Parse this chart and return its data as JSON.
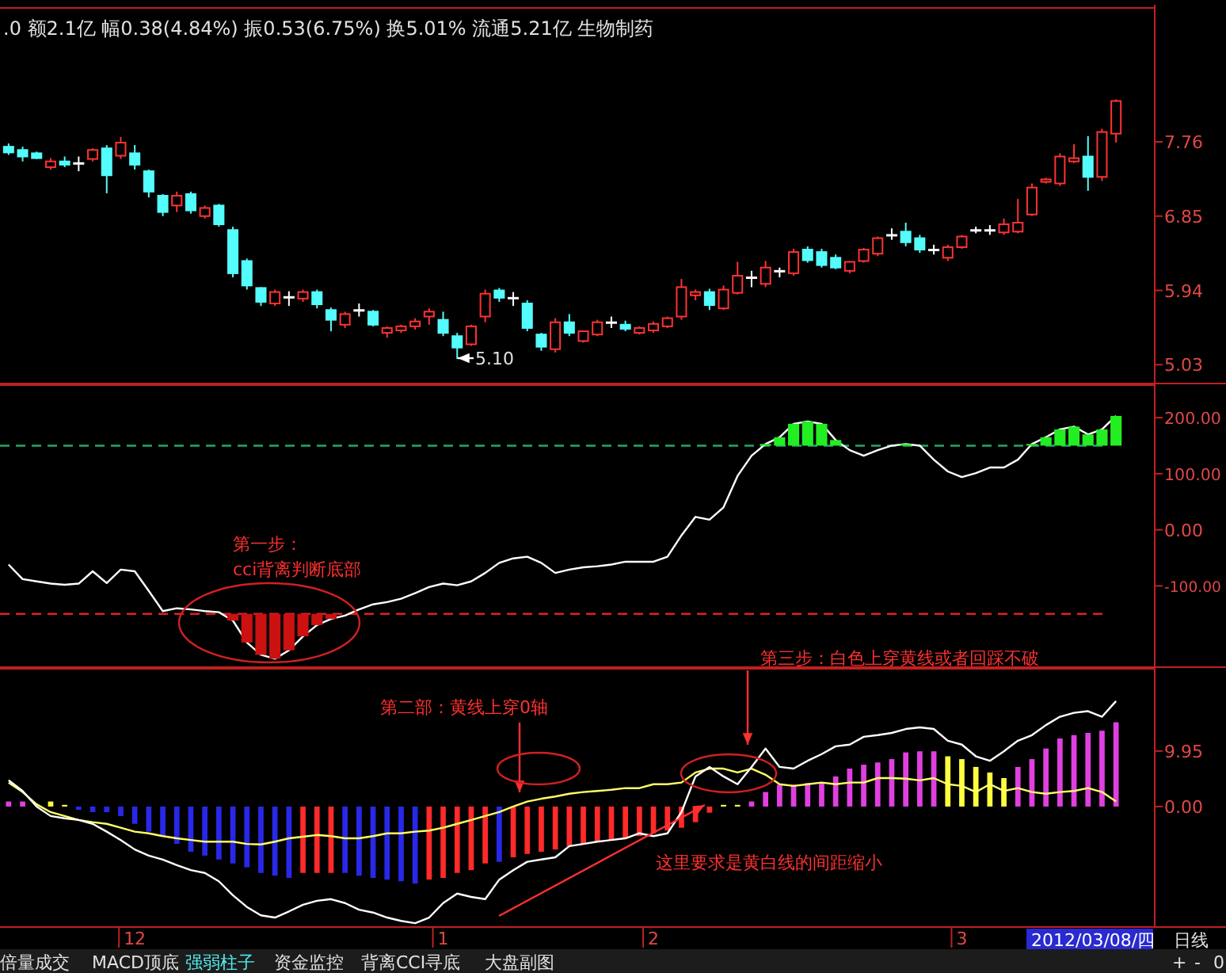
{
  "chart_data": [
    {
      "type": "candlestick",
      "title": ".0 额2.1亿 幅0.38(4.84%) 振0.53(6.75%) 换5.01% 流通5.21亿 生物制药",
      "categories": [
        null,
        null,
        null,
        null,
        null,
        null,
        null,
        null,
        null,
        null,
        null,
        null,
        null,
        null,
        null,
        null,
        null,
        null,
        null,
        null,
        null,
        null,
        null,
        null,
        null,
        null,
        null,
        null,
        null,
        null,
        null,
        null,
        null,
        null,
        null,
        null,
        null,
        null,
        null,
        null,
        null,
        null,
        null,
        null,
        null,
        null,
        null,
        null,
        null,
        null,
        null,
        null,
        null,
        null,
        null,
        null,
        null,
        null,
        null,
        null,
        null,
        null,
        null,
        null,
        null,
        null,
        null,
        null,
        null,
        null,
        null,
        null,
        null,
        null,
        null,
        null,
        null,
        null,
        null,
        null
      ],
      "ohlc": [
        [
          7.7,
          7.74,
          7.6,
          7.63
        ],
        [
          7.66,
          7.7,
          7.52,
          7.58
        ],
        [
          7.62,
          7.64,
          7.55,
          7.56
        ],
        [
          7.45,
          7.56,
          7.42,
          7.52
        ],
        [
          7.52,
          7.58,
          7.45,
          7.48
        ],
        [
          7.5,
          7.58,
          7.4,
          7.5
        ],
        [
          7.55,
          7.68,
          7.52,
          7.66
        ],
        [
          7.68,
          7.72,
          7.13,
          7.35
        ],
        [
          7.59,
          7.82,
          7.55,
          7.75
        ],
        [
          7.62,
          7.72,
          7.42,
          7.48
        ],
        [
          7.4,
          7.42,
          7.08,
          7.15
        ],
        [
          7.1,
          7.12,
          6.85,
          6.9
        ],
        [
          6.98,
          7.15,
          6.9,
          7.1
        ],
        [
          7.12,
          7.15,
          6.88,
          6.92
        ],
        [
          6.85,
          6.98,
          6.82,
          6.95
        ],
        [
          6.98,
          7.0,
          6.72,
          6.75
        ],
        [
          6.68,
          6.72,
          6.1,
          6.15
        ],
        [
          6.3,
          6.33,
          5.95,
          6.0
        ],
        [
          5.97,
          5.98,
          5.75,
          5.8
        ],
        [
          5.78,
          5.95,
          5.75,
          5.92
        ],
        [
          5.86,
          5.93,
          5.75,
          5.86
        ],
        [
          5.84,
          5.95,
          5.8,
          5.92
        ],
        [
          5.92,
          5.95,
          5.72,
          5.77
        ],
        [
          5.7,
          5.73,
          5.44,
          5.58
        ],
        [
          5.52,
          5.68,
          5.48,
          5.65
        ],
        [
          5.7,
          5.78,
          5.62,
          5.7
        ],
        [
          5.68,
          5.7,
          5.5,
          5.52
        ],
        [
          5.42,
          5.5,
          5.36,
          5.48
        ],
        [
          5.45,
          5.52,
          5.42,
          5.5
        ],
        [
          5.5,
          5.6,
          5.46,
          5.56
        ],
        [
          5.62,
          5.72,
          5.52,
          5.68
        ],
        [
          5.58,
          5.68,
          5.38,
          5.42
        ],
        [
          5.38,
          5.42,
          5.1,
          5.24
        ],
        [
          5.28,
          5.52,
          5.26,
          5.5
        ],
        [
          5.62,
          5.95,
          5.55,
          5.9
        ],
        [
          5.94,
          5.97,
          5.8,
          5.85
        ],
        [
          5.85,
          5.92,
          5.75,
          5.85
        ],
        [
          5.78,
          5.82,
          5.44,
          5.48
        ],
        [
          5.4,
          5.42,
          5.2,
          5.25
        ],
        [
          5.22,
          5.6,
          5.18,
          5.55
        ],
        [
          5.55,
          5.65,
          5.38,
          5.42
        ],
        [
          5.32,
          5.45,
          5.3,
          5.44
        ],
        [
          5.4,
          5.58,
          5.38,
          5.55
        ],
        [
          5.55,
          5.62,
          5.48,
          5.55
        ],
        [
          5.52,
          5.57,
          5.44,
          5.47
        ],
        [
          5.42,
          5.5,
          5.4,
          5.48
        ],
        [
          5.45,
          5.56,
          5.42,
          5.53
        ],
        [
          5.5,
          5.62,
          5.48,
          5.6
        ],
        [
          5.62,
          6.08,
          5.58,
          5.98
        ],
        [
          5.88,
          5.95,
          5.82,
          5.92
        ],
        [
          5.92,
          5.96,
          5.7,
          5.76
        ],
        [
          5.72,
          6.0,
          5.7,
          5.95
        ],
        [
          5.91,
          6.29,
          5.89,
          6.12
        ],
        [
          6.1,
          6.18,
          5.98,
          6.1
        ],
        [
          6.02,
          6.3,
          5.98,
          6.22
        ],
        [
          6.18,
          6.22,
          6.1,
          6.18
        ],
        [
          6.15,
          6.45,
          6.12,
          6.41
        ],
        [
          6.44,
          6.48,
          6.28,
          6.31
        ],
        [
          6.41,
          6.45,
          6.22,
          6.25
        ],
        [
          6.34,
          6.38,
          6.2,
          6.22
        ],
        [
          6.18,
          6.3,
          6.15,
          6.29
        ],
        [
          6.3,
          6.46,
          6.28,
          6.44
        ],
        [
          6.39,
          6.6,
          6.36,
          6.58
        ],
        [
          6.62,
          6.7,
          6.56,
          6.62
        ],
        [
          6.66,
          6.77,
          6.48,
          6.53
        ],
        [
          6.58,
          6.62,
          6.4,
          6.44
        ],
        [
          6.44,
          6.5,
          6.38,
          6.44
        ],
        [
          6.34,
          6.5,
          6.3,
          6.47
        ],
        [
          6.47,
          6.62,
          6.45,
          6.6
        ],
        [
          6.68,
          6.72,
          6.64,
          6.68
        ],
        [
          6.68,
          6.74,
          6.62,
          6.68
        ],
        [
          6.65,
          6.82,
          6.62,
          6.75
        ],
        [
          6.66,
          7.06,
          6.64,
          6.77
        ],
        [
          6.87,
          7.25,
          6.85,
          7.2
        ],
        [
          7.27,
          7.32,
          7.25,
          7.3
        ],
        [
          7.25,
          7.62,
          7.22,
          7.58
        ],
        [
          7.52,
          7.73,
          7.5,
          7.56
        ],
        [
          7.58,
          7.83,
          7.16,
          7.33
        ],
        [
          7.33,
          7.92,
          7.28,
          7.88
        ],
        [
          7.86,
          8.28,
          7.75,
          8.26
        ]
      ],
      "colors": [
        "#54fcfc",
        "#54fcfc",
        "#54fcfc",
        "#ff3232",
        "#54fcfc",
        "#ffffff",
        "#ff3232",
        "#54fcfc",
        "#ff3232",
        "#54fcfc",
        "#54fcfc",
        "#54fcfc",
        "#ff3232",
        "#54fcfc",
        "#ff3232",
        "#54fcfc",
        "#54fcfc",
        "#54fcfc",
        "#54fcfc",
        "#ff3232",
        "#ffffff",
        "#ff3232",
        "#54fcfc",
        "#54fcfc",
        "#ff3232",
        "#ffffff",
        "#54fcfc",
        "#ff3232",
        "#ff3232",
        "#ff3232",
        "#ff3232",
        "#54fcfc",
        "#54fcfc",
        "#ff3232",
        "#ff3232",
        "#54fcfc",
        "#ffffff",
        "#54fcfc",
        "#54fcfc",
        "#ff3232",
        "#54fcfc",
        "#ff3232",
        "#ff3232",
        "#ffffff",
        "#54fcfc",
        "#ff3232",
        "#ff3232",
        "#ff3232",
        "#ff3232",
        "#ff3232",
        "#54fcfc",
        "#ff3232",
        "#ff3232",
        "#ffffff",
        "#ff3232",
        "#ffffff",
        "#ff3232",
        "#54fcfc",
        "#54fcfc",
        "#54fcfc",
        "#ff3232",
        "#ff3232",
        "#ff3232",
        "#ffffff",
        "#54fcfc",
        "#54fcfc",
        "#ffffff",
        "#ff3232",
        "#ff3232",
        "#ffffff",
        "#ffffff",
        "#ff3232",
        "#ff3232",
        "#ff3232",
        "#ff3232",
        "#ff3232",
        "#ff3232",
        "#54fcfc",
        "#ff3232",
        "#ff3232"
      ],
      "ylim": [
        4.8,
        9.4
      ],
      "yticks": [
        5.03,
        5.94,
        6.85,
        7.76
      ],
      "tick_labels": "y",
      "annotations": [
        "5.10"
      ]
    },
    {
      "type": "line",
      "categories": [
        null,
        null,
        null,
        null,
        null,
        null,
        null,
        null,
        null,
        null,
        null,
        null,
        null,
        null,
        null,
        null,
        null,
        null,
        null,
        null,
        null,
        null,
        null,
        null,
        null,
        null,
        null,
        null,
        null,
        null,
        null,
        null,
        null,
        null,
        null,
        null,
        null,
        null,
        null,
        null,
        null,
        null,
        null,
        null,
        null,
        null,
        null,
        null,
        null,
        null,
        null,
        null,
        null,
        null,
        null,
        null,
        null,
        null,
        null,
        null,
        null,
        null,
        null,
        null,
        null,
        null,
        null,
        null,
        null,
        null,
        null,
        null,
        null,
        null,
        null,
        null,
        null,
        null,
        null,
        null
      ],
      "series": [
        {
          "type": "line",
          "color": "#ffffff",
          "values": [
            -62,
            -88,
            -92,
            -96,
            -98,
            -96,
            -74,
            -95,
            -71,
            -74,
            -109,
            -145,
            -140,
            -142,
            -145,
            -147,
            -162,
            -201,
            -223,
            -230,
            -215,
            -190,
            -170,
            -159,
            -153,
            -142,
            -133,
            -129,
            -123,
            -113,
            -102,
            -96,
            -99,
            -92,
            -77,
            -59,
            -51,
            -48,
            -59,
            -77,
            -71,
            -67,
            -65,
            -62,
            -57,
            -57,
            -57,
            -48,
            -10,
            23,
            18,
            40,
            96,
            132,
            153,
            165,
            189,
            193,
            189,
            160,
            142,
            132,
            142,
            150,
            153,
            150,
            125,
            104,
            94,
            101,
            111,
            111,
            125,
            153,
            165,
            179,
            184,
            170,
            179,
            203
          ]
        },
        {
          "type": "bar",
          "color": "#22ee22",
          "values": [
            null,
            null,
            null,
            null,
            null,
            null,
            null,
            null,
            null,
            null,
            null,
            null,
            null,
            null,
            null,
            null,
            null,
            null,
            null,
            null,
            null,
            null,
            null,
            null,
            null,
            null,
            null,
            null,
            null,
            null,
            null,
            null,
            null,
            null,
            null,
            null,
            null,
            null,
            null,
            null,
            null,
            null,
            null,
            null,
            null,
            null,
            null,
            null,
            null,
            null,
            null,
            null,
            null,
            null,
            3,
            15,
            39,
            43,
            39,
            10,
            null,
            null,
            null,
            null,
            3,
            null,
            null,
            null,
            null,
            null,
            null,
            null,
            null,
            3,
            15,
            29,
            34,
            20,
            29,
            53
          ],
          "base": [
            null,
            null,
            null,
            null,
            null,
            null,
            null,
            null,
            null,
            null,
            null,
            null,
            null,
            null,
            null,
            null,
            null,
            null,
            null,
            null,
            null,
            null,
            null,
            null,
            null,
            null,
            null,
            null,
            null,
            null,
            null,
            null,
            null,
            null,
            null,
            null,
            null,
            null,
            null,
            null,
            null,
            null,
            null,
            null,
            null,
            null,
            null,
            null,
            null,
            null,
            null,
            null,
            null,
            null,
            150,
            150,
            150,
            150,
            150,
            150,
            null,
            null,
            null,
            null,
            150,
            null,
            null,
            null,
            null,
            null,
            null,
            null,
            null,
            150,
            150,
            150,
            150,
            150,
            150,
            150
          ]
        },
        {
          "type": "bar",
          "color": "#cc1111",
          "values": [
            null,
            null,
            null,
            null,
            null,
            null,
            null,
            null,
            null,
            null,
            null,
            null,
            null,
            null,
            null,
            null,
            -12,
            -51,
            -73,
            -80,
            -65,
            -40,
            -20,
            -9,
            null,
            null,
            null,
            null,
            null,
            null,
            null,
            null,
            null,
            null,
            null,
            null,
            null,
            null,
            null,
            null,
            null,
            null,
            null,
            null,
            null,
            null,
            null,
            null,
            null,
            null,
            null,
            null,
            null,
            null,
            null,
            null,
            null,
            null,
            null,
            null,
            null,
            null,
            null,
            null,
            null,
            null,
            null,
            null,
            null,
            null,
            null,
            null,
            null,
            null,
            null,
            null,
            null,
            null,
            null,
            null
          ],
          "base": [
            null,
            null,
            null,
            null,
            null,
            null,
            null,
            null,
            null,
            null,
            null,
            null,
            null,
            null,
            null,
            null,
            -150,
            -150,
            -150,
            -150,
            -150,
            -150,
            -150,
            -150,
            null,
            null,
            null,
            null,
            null,
            null,
            null,
            null,
            null,
            null,
            null,
            null,
            null,
            null,
            null,
            null,
            null,
            null,
            null,
            null,
            null,
            null,
            null,
            null,
            null,
            null,
            null,
            null,
            null,
            null,
            null,
            null,
            null,
            null,
            null,
            null,
            null,
            null,
            null,
            null,
            null,
            null,
            null,
            null,
            null,
            null,
            null,
            null,
            null,
            null,
            null,
            null,
            null,
            null,
            null,
            null
          ]
        }
      ],
      "ylim": [
        -245,
        258
      ],
      "yticks": [
        {
          "value": 200,
          "label": "200.00"
        },
        {
          "value": 100,
          "label": "100.00"
        },
        {
          "value": 0,
          "label": "0.00"
        },
        {
          "value": -100,
          "label": "-100.00"
        }
      ],
      "tick_labels": "y",
      "ref_lines": [
        {
          "axis": "y",
          "value": 150,
          "color": "#22aa66",
          "line_style": "dashed"
        },
        {
          "axis": "y",
          "value": -150,
          "color": "#dd2222",
          "line_style": "dashed"
        }
      ],
      "annotations": [
        "第一步：",
        "cci背离判断底部"
      ]
    },
    {
      "type": "bar",
      "categories": [
        null,
        null,
        null,
        null,
        null,
        null,
        null,
        null,
        null,
        "12",
        null,
        null,
        null,
        null,
        null,
        null,
        null,
        null,
        null,
        null,
        null,
        null,
        null,
        null,
        null,
        null,
        null,
        null,
        null,
        null,
        null,
        "1",
        null,
        null,
        null,
        null,
        null,
        null,
        null,
        null,
        null,
        null,
        null,
        null,
        null,
        null,
        "2",
        null,
        null,
        null,
        null,
        null,
        null,
        null,
        null,
        null,
        null,
        null,
        null,
        null,
        null,
        null,
        null,
        null,
        null,
        null,
        null,
        null,
        "3",
        null,
        null,
        null,
        null,
        null,
        null,
        null,
        null,
        null,
        null,
        null
      ],
      "series": [
        {
          "type": "bar",
          "values": [
            0.9,
            0.9,
            null,
            0.9,
            0.3,
            -0.6,
            -1.0,
            -1.0,
            -1.7,
            -3.1,
            -4.5,
            -5.3,
            -6.7,
            -8.1,
            -8.8,
            -9.5,
            -10.2,
            -10.9,
            -11.9,
            -12.4,
            -12.8,
            -11.9,
            -11.9,
            -11.9,
            -11.9,
            -12.4,
            -12.8,
            -13.1,
            -13.4,
            -13.8,
            -13.1,
            -12.8,
            -11.9,
            -11.4,
            -10.2,
            -9.9,
            -9.1,
            -8.5,
            -8.1,
            -7.7,
            -7.1,
            -6.7,
            -6.3,
            -6.0,
            -5.7,
            -5.3,
            -4.8,
            -4.3,
            -3.8,
            -2.8,
            -1.1,
            0.3,
            0.3,
            0.9,
            2.6,
            3.9,
            3.9,
            4.2,
            4.2,
            5.4,
            6.8,
            7.5,
            7.9,
            8.5,
            9.7,
            9.9,
            9.9,
            9.0,
            8.5,
            7.1,
            6.1,
            5.1,
            7.1,
            8.5,
            10.4,
            12.2,
            12.8,
            13.2,
            13.6,
            15.1
          ],
          "colors": [
            "#e040e0",
            "#e040e0",
            null,
            "#ffff40",
            "#ffff40",
            "#2828e8",
            "#2828e8",
            "#2828e8",
            "#2828e8",
            "#2828e8",
            "#2828e8",
            "#2828e8",
            "#2828e8",
            "#2828e8",
            "#2828e8",
            "#2828e8",
            "#2828e8",
            "#2828e8",
            "#2828e8",
            "#2828e8",
            "#2828e8",
            "#ff2a2a",
            "#ff2a2a",
            "#ff2a2a",
            "#2828e8",
            "#2828e8",
            "#2828e8",
            "#2828e8",
            "#2828e8",
            "#2828e8",
            "#ff2a2a",
            "#ff2a2a",
            "#ff2a2a",
            "#ff2a2a",
            "#ff2a2a",
            "#2828e8",
            "#ff2a2a",
            "#ff2a2a",
            "#ff2a2a",
            "#ff2a2a",
            "#ff2a2a",
            "#ff2a2a",
            "#ff2a2a",
            "#ff2a2a",
            "#ff2a2a",
            "#ff2a2a",
            "#ff2a2a",
            "#ff2a2a",
            "#ff2a2a",
            "#ff2a2a",
            "#ff2a2a",
            "#ffff40",
            "#ffff40",
            "#e040e0",
            "#e040e0",
            "#e040e0",
            "#e040e0",
            "#e040e0",
            "#e040e0",
            "#e040e0",
            "#e040e0",
            "#e040e0",
            "#e040e0",
            "#e040e0",
            "#e040e0",
            "#e040e0",
            "#e040e0",
            "#ffff40",
            "#ffff40",
            "#ffff40",
            "#ffff40",
            "#ffff40",
            "#e040e0",
            "#e040e0",
            "#e040e0",
            "#e040e0",
            "#e040e0",
            "#e040e0",
            "#e040e0",
            "#e040e0"
          ]
        },
        {
          "type": "line",
          "color": "#ffff66",
          "values": [
            4.3,
            2.6,
            0.4,
            -1.0,
            -1.7,
            -2.4,
            -2.8,
            -3.1,
            -3.8,
            -4.5,
            -4.8,
            -5.3,
            -5.7,
            -6.0,
            -6.3,
            -6.3,
            -6.3,
            -6.7,
            -6.8,
            -6.3,
            -5.7,
            -5.4,
            -5.1,
            -5.3,
            -5.7,
            -5.7,
            -5.3,
            -4.8,
            -4.8,
            -4.5,
            -4.3,
            -3.8,
            -3.1,
            -2.4,
            -1.7,
            -1.0,
            0,
            0.9,
            1.4,
            1.8,
            2.3,
            2.6,
            2.8,
            3.0,
            3.3,
            3.3,
            4.0,
            4.0,
            4.3,
            6.1,
            6.8,
            6.8,
            6.1,
            6.8,
            5.7,
            4.0,
            3.7,
            4.0,
            4.3,
            4.0,
            4.3,
            4.3,
            5.1,
            5.1,
            5.0,
            4.7,
            5.1,
            4.0,
            3.7,
            2.6,
            4.0,
            2.8,
            3.3,
            2.6,
            2.3,
            2.6,
            2.8,
            3.3,
            2.6,
            0.9
          ]
        },
        {
          "type": "line",
          "color": "#ffffff",
          "values": [
            4.7,
            2.8,
            0,
            -1.7,
            -2.1,
            -2.4,
            -3.1,
            -4.5,
            -6.0,
            -7.7,
            -8.8,
            -9.5,
            -10.5,
            -11.4,
            -11.9,
            -13.4,
            -15.9,
            -18.0,
            -19.5,
            -19.9,
            -18.8,
            -17.6,
            -16.9,
            -16.6,
            -17.3,
            -18.5,
            -19.0,
            -19.9,
            -20.5,
            -20.9,
            -19.9,
            -17.3,
            -15.6,
            -16.2,
            -16.6,
            -13.1,
            -11.4,
            -9.9,
            -9.5,
            -9.1,
            -7.1,
            -6.7,
            -6.3,
            -6.0,
            -5.7,
            -4.8,
            -5.3,
            -4.8,
            -1.0,
            5.4,
            7.1,
            5.4,
            4.0,
            7.1,
            10.4,
            7.1,
            6.8,
            8.2,
            9.4,
            10.8,
            11.1,
            12.5,
            12.8,
            13.2,
            13.9,
            14.2,
            13.9,
            11.8,
            11.1,
            9.0,
            8.2,
            9.9,
            11.8,
            12.8,
            14.6,
            16.1,
            16.8,
            17.1,
            16.1,
            18.9
          ]
        }
      ],
      "ylim": [
        -21.6,
        24.7
      ],
      "yticks": [
        9.95,
        {
          "value": 0,
          "label": "0.00"
        }
      ],
      "annotations": [
        "第二部：黄线上穿0轴",
        "第三步：白色上穿黄线或者回踩不破",
        "这里要求是黄白线的间距缩小",
        "2012/03/08/四",
        "日线",
        "倍量成交",
        "MACD顶底",
        "强弱柱子",
        "资金监控",
        "背离CCI寻底",
        "大盘副图",
        "+",
        "-",
        "0"
      ]
    }
  ]
}
